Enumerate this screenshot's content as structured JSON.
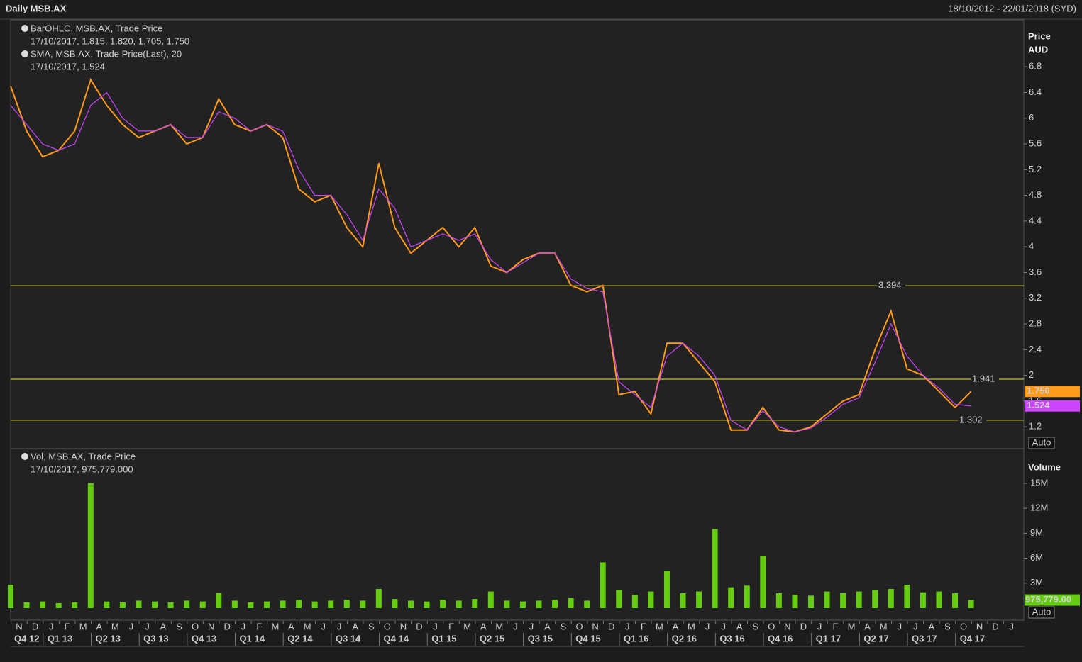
{
  "chart_data": {
    "type": "ohlc-volume",
    "title": "Daily MSB.AX",
    "date_range": "18/10/2012 - 22/01/2018 (SYD)",
    "price_panel": {
      "axis_label": "Price",
      "axis_unit": "AUD",
      "ylim": [
        0.86,
        7.53
      ],
      "yticks": [
        1.2,
        1.6,
        2,
        2.4,
        2.8,
        3.2,
        3.6,
        4,
        4.4,
        4.8,
        5.2,
        5.6,
        6,
        6.4,
        6.8
      ],
      "scale_button": "Auto",
      "series": [
        {
          "name": "BarOHLC, MSB.AX, Trade Price",
          "detail": "17/10/2017, 1.815, 1.820, 1.705, 1.750",
          "color": "#ff9a1a",
          "values": [
            6.5,
            5.8,
            5.4,
            5.5,
            5.8,
            6.6,
            6.2,
            5.9,
            5.7,
            5.8,
            5.9,
            5.6,
            5.7,
            6.3,
            5.9,
            5.8,
            5.9,
            5.7,
            4.9,
            4.7,
            4.8,
            4.3,
            4.0,
            5.3,
            4.3,
            3.9,
            4.1,
            4.3,
            4.0,
            4.3,
            3.7,
            3.6,
            3.8,
            3.9,
            3.9,
            3.4,
            3.3,
            3.4,
            1.7,
            1.75,
            1.4,
            2.5,
            2.5,
            2.2,
            1.9,
            1.15,
            1.15,
            1.5,
            1.15,
            1.12,
            1.2,
            1.4,
            1.6,
            1.7,
            2.4,
            3.0,
            2.1,
            2.0,
            1.75,
            1.5,
            1.75
          ],
          "tag": {
            "value": 1.75,
            "label": "1.750"
          }
        },
        {
          "name": "SMA, MSB.AX, Trade Price(Last),  20",
          "detail": "17/10/2017, 1.524",
          "color": "#cc44ff",
          "values": [
            6.2,
            5.9,
            5.6,
            5.5,
            5.6,
            6.2,
            6.4,
            6.0,
            5.8,
            5.8,
            5.9,
            5.7,
            5.7,
            6.1,
            6.0,
            5.8,
            5.9,
            5.8,
            5.2,
            4.8,
            4.8,
            4.5,
            4.1,
            4.9,
            4.6,
            4.0,
            4.1,
            4.2,
            4.1,
            4.2,
            3.8,
            3.6,
            3.75,
            3.9,
            3.9,
            3.5,
            3.35,
            3.3,
            1.9,
            1.7,
            1.5,
            2.3,
            2.5,
            2.3,
            2.0,
            1.3,
            1.15,
            1.45,
            1.2,
            1.12,
            1.18,
            1.35,
            1.55,
            1.65,
            2.2,
            2.8,
            2.3,
            2.0,
            1.8,
            1.55,
            1.524
          ],
          "tag": {
            "value": 1.524,
            "label": "1.524"
          }
        }
      ],
      "levels": [
        {
          "value": 3.394,
          "label": "3.394"
        },
        {
          "value": 1.941,
          "label": "1.941"
        },
        {
          "value": 1.302,
          "label": "1.302"
        }
      ],
      "level_color": "#e6e64a"
    },
    "volume_panel": {
      "axis_label": "Volume",
      "ylim": [
        0,
        19000000
      ],
      "yticks": [
        {
          "value": 3000000,
          "label": "3M"
        },
        {
          "value": 6000000,
          "label": "6M"
        },
        {
          "value": 9000000,
          "label": "9M"
        },
        {
          "value": 12000000,
          "label": "12M"
        },
        {
          "value": 15000000,
          "label": "15M"
        }
      ],
      "scale_button": "Auto",
      "series": [
        {
          "name": "Vol, MSB.AX, Trade Price",
          "detail": "17/10/2017, 975,779.000",
          "color": "#66cc11",
          "values": [
            2800000,
            700000,
            800000,
            600000,
            700000,
            15000000,
            800000,
            700000,
            900000,
            800000,
            700000,
            900000,
            800000,
            1800000,
            900000,
            700000,
            800000,
            900000,
            1000000,
            800000,
            900000,
            1000000,
            900000,
            2300000,
            1100000,
            900000,
            800000,
            1000000,
            900000,
            1100000,
            2000000,
            900000,
            800000,
            900000,
            1000000,
            1200000,
            900000,
            5500000,
            2200000,
            1600000,
            2000000,
            4500000,
            1800000,
            2000000,
            9500000,
            2500000,
            2700000,
            6300000,
            1800000,
            1600000,
            1500000,
            2000000,
            1800000,
            2000000,
            2200000,
            2300000,
            2800000,
            1900000,
            2000000,
            1800000,
            975779
          ],
          "tag": {
            "value": 975779,
            "label": "975,779.00"
          }
        }
      ]
    },
    "months": [
      "N",
      "D",
      "J",
      "F",
      "M",
      "A",
      "M",
      "J",
      "J",
      "A",
      "S",
      "O",
      "N",
      "D",
      "J",
      "F",
      "M",
      "A",
      "M",
      "J",
      "J",
      "A",
      "S",
      "O",
      "N",
      "D",
      "J",
      "F",
      "M",
      "A",
      "M",
      "J",
      "J",
      "A",
      "S",
      "O",
      "N",
      "D",
      "J",
      "F",
      "M",
      "A",
      "M",
      "J",
      "J",
      "A",
      "S",
      "O",
      "N",
      "D",
      "J",
      "F",
      "M",
      "A",
      "M",
      "J",
      "J",
      "A",
      "S",
      "O",
      "N",
      "D",
      "J"
    ],
    "quarters": [
      "Q4 12",
      "Q1 13",
      "Q2 13",
      "Q3 13",
      "Q4 13",
      "Q1 14",
      "Q2 14",
      "Q3 14",
      "Q4 14",
      "Q1 15",
      "Q2 15",
      "Q3 15",
      "Q4 15",
      "Q1 16",
      "Q2 16",
      "Q3 16",
      "Q4 16",
      "Q1 17",
      "Q2 17",
      "Q3 17",
      "Q4 17"
    ]
  }
}
